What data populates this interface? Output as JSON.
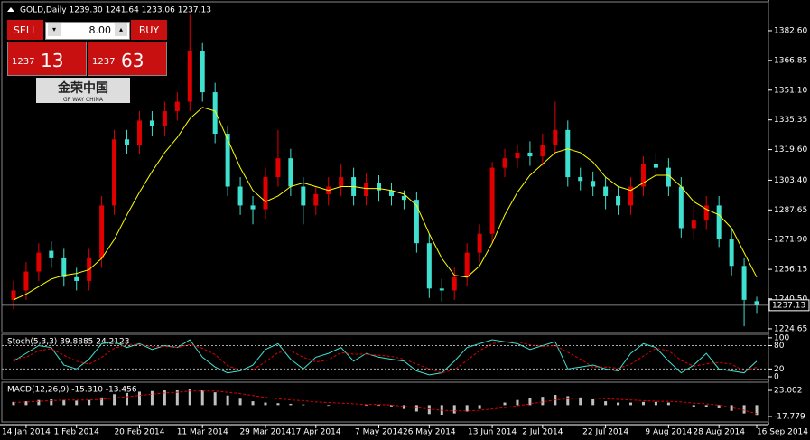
{
  "header": "GOLD,Daily 1239.30 1241.64 1233.06 1237.13",
  "trade_panel": {
    "sell": "SELL",
    "lots": "8.00",
    "buy": "BUY",
    "bid_big": "1237",
    "bid_small": "13",
    "ask_big": "1237",
    "ask_small": "63"
  },
  "logo": {
    "name": "金荣中国",
    "tagline": "GP WAY CHINA"
  },
  "chart_data": [
    {
      "type": "candlestick",
      "categories": [
        null,
        "14 Jan 2014",
        null,
        null,
        null,
        "1 Feb 2014",
        null,
        null,
        null,
        null,
        "20 Feb 2014",
        null,
        null,
        null,
        null,
        "11 Mar 2014",
        null,
        null,
        null,
        null,
        "29 Mar 2014",
        null,
        null,
        null,
        "17 Apr 2014",
        null,
        null,
        null,
        null,
        "7 May 2014",
        null,
        null,
        null,
        "26 May 2014",
        null,
        null,
        null,
        null,
        "13 Jun 2014",
        null,
        null,
        null,
        "2 Jul 2014",
        null,
        null,
        null,
        null,
        "22 Jul 2014",
        null,
        null,
        null,
        null,
        "9 Aug 2014",
        null,
        null,
        null,
        "28 Aug 2014",
        null,
        null,
        "16 Sep 2014"
      ],
      "open": [
        1240,
        1245,
        1255,
        1266,
        1262,
        1252,
        1250,
        1262,
        1290,
        1325,
        1322,
        1335,
        1332,
        1340,
        1345,
        1372,
        1350,
        1328,
        1300,
        1290,
        1288,
        1305,
        1315,
        1300,
        1290,
        1296,
        1300,
        1305,
        1295,
        1302,
        1298,
        1295,
        1293,
        1270,
        1246,
        1245,
        1252,
        1265,
        1275,
        1310,
        1315,
        1318,
        1316,
        1322,
        1330,
        1305,
        1303,
        1300,
        1295,
        1290,
        1300,
        1312,
        1310,
        1300,
        1278,
        1282,
        1290,
        1272,
        1258,
        1239.3
      ],
      "high": [
        1250,
        1260,
        1270,
        1271,
        1267,
        1257,
        1267,
        1295,
        1330,
        1330,
        1340,
        1340,
        1345,
        1350,
        1391,
        1376,
        1355,
        1332,
        1305,
        1295,
        1310,
        1330,
        1320,
        1305,
        1300,
        1305,
        1312,
        1310,
        1307,
        1306,
        1302,
        1298,
        1297,
        1275,
        1251,
        1257,
        1270,
        1280,
        1313,
        1320,
        1322,
        1324,
        1328,
        1345,
        1335,
        1310,
        1308,
        1305,
        1300,
        1305,
        1316,
        1318,
        1315,
        1305,
        1290,
        1295,
        1295,
        1278,
        1262,
        1241.64
      ],
      "low": [
        1235,
        1240,
        1250,
        1257,
        1247,
        1245,
        1245,
        1257,
        1285,
        1317,
        1317,
        1327,
        1327,
        1335,
        1340,
        1345,
        1323,
        1295,
        1285,
        1280,
        1283,
        1300,
        1295,
        1280,
        1285,
        1290,
        1295,
        1290,
        1290,
        1292,
        1290,
        1288,
        1265,
        1241,
        1239,
        1240,
        1247,
        1260,
        1270,
        1305,
        1310,
        1311,
        1311,
        1317,
        1300,
        1298,
        1295,
        1288,
        1285,
        1285,
        1295,
        1305,
        1295,
        1273,
        1272,
        1277,
        1268,
        1253,
        1226,
        1233.06
      ],
      "close": [
        1245,
        1255,
        1265,
        1262,
        1252,
        1250,
        1262,
        1290,
        1325,
        1322,
        1335,
        1332,
        1340,
        1345,
        1372,
        1350,
        1328,
        1300,
        1290,
        1288,
        1305,
        1315,
        1300,
        1290,
        1296,
        1300,
        1305,
        1295,
        1302,
        1298,
        1295,
        1293,
        1270,
        1246,
        1245,
        1252,
        1265,
        1275,
        1310,
        1315,
        1318,
        1316,
        1322,
        1330,
        1305,
        1303,
        1300,
        1295,
        1290,
        1300,
        1312,
        1310,
        1300,
        1278,
        1282,
        1290,
        1272,
        1258,
        1240,
        1237.13
      ],
      "up_color": "#e00000",
      "down_color": "#3fe0d0",
      "ma": {
        "color": "#ffff00",
        "values": [
          1240,
          1243,
          1247,
          1251,
          1253,
          1254,
          1256,
          1262,
          1272,
          1285,
          1297,
          1308,
          1318,
          1326,
          1336,
          1342,
          1340,
          1325,
          1310,
          1298,
          1292,
          1295,
          1300,
          1302,
          1300,
          1298,
          1300,
          1300,
          1299,
          1299,
          1298,
          1296,
          1290,
          1275,
          1262,
          1253,
          1252,
          1258,
          1270,
          1285,
          1297,
          1306,
          1312,
          1318,
          1320,
          1318,
          1313,
          1305,
          1300,
          1298,
          1302,
          1306,
          1306,
          1300,
          1292,
          1288,
          1285,
          1278,
          1265,
          1252
        ]
      },
      "current_price": 1237.13,
      "ylim": [
        1222.7,
        1397.9
      ],
      "yticks": [
        1224.65,
        {
          "value": 1240.5,
          "label": "1240.50"
        },
        1256.15,
        {
          "value": 1271.9,
          "label": "1271.90"
        },
        1287.65,
        {
          "value": 1303.4,
          "label": "1303.40"
        },
        {
          "value": 1319.6,
          "label": "1319.60"
        },
        1335.35,
        {
          "value": 1351.1,
          "label": "1351.10"
        },
        1366.85,
        {
          "value": 1382.6,
          "label": "1382.60"
        }
      ]
    },
    {
      "type": "line",
      "title": "Stoch(5,3,3) 39.8885 24.2123",
      "series": [
        {
          "color": "#3fe0d0",
          "values": [
            40,
            60,
            80,
            75,
            30,
            20,
            45,
            85,
            90,
            75,
            85,
            70,
            80,
            75,
            95,
            50,
            25,
            10,
            15,
            30,
            70,
            85,
            45,
            20,
            50,
            60,
            75,
            40,
            60,
            50,
            45,
            40,
            15,
            5,
            10,
            40,
            75,
            85,
            95,
            90,
            85,
            70,
            80,
            90,
            20,
            25,
            30,
            20,
            15,
            60,
            85,
            75,
            40,
            10,
            30,
            60,
            20,
            15,
            10,
            39.8885
          ]
        },
        {
          "color": "#e00000",
          "dashed": true,
          "values": [
            45,
            50,
            67,
            72,
            55,
            40,
            32,
            50,
            73,
            83,
            83,
            77,
            78,
            75,
            83,
            73,
            57,
            28,
            17,
            18,
            38,
            62,
            67,
            50,
            38,
            43,
            62,
            58,
            58,
            55,
            52,
            45,
            33,
            20,
            10,
            18,
            42,
            67,
            85,
            90,
            90,
            82,
            78,
            80,
            63,
            45,
            25,
            25,
            22,
            32,
            53,
            73,
            67,
            42,
            27,
            33,
            37,
            32,
            15,
            24.2123
          ]
        }
      ],
      "levels": [
        80,
        20
      ],
      "ylim": [
        -7,
        109
      ],
      "yticks": [
        100,
        80,
        20,
        0
      ]
    },
    {
      "type": "macd",
      "title": "MACD(12,26,9) -15.310 -13.456",
      "series": [
        {
          "color": "#c0c0c0",
          "kind": "bar",
          "values": [
            5,
            6,
            8,
            9,
            8,
            7,
            8,
            12,
            17,
            19,
            21,
            22,
            23,
            23,
            25,
            23,
            20,
            15,
            10,
            6,
            4,
            3,
            2,
            1,
            0,
            -1,
            0,
            0,
            -1,
            -1,
            -2,
            -6,
            -10,
            -14,
            -15,
            -13,
            -10,
            -6,
            0,
            4,
            8,
            11,
            13,
            16,
            14,
            12,
            9,
            6,
            4,
            4,
            5,
            5,
            4,
            0,
            -3,
            -3,
            -5,
            -9,
            -13,
            -15.31
          ]
        },
        {
          "color": "#e00000",
          "kind": "line",
          "values": [
            4,
            5,
            6,
            7,
            8,
            8,
            8,
            9,
            11,
            13,
            15,
            17,
            19,
            20,
            22,
            22,
            22,
            20,
            18,
            15,
            12,
            10,
            8,
            7,
            5,
            4,
            3,
            2,
            1,
            1,
            0,
            -2,
            -4,
            -6,
            -8,
            -9,
            -9,
            -8,
            -6,
            -4,
            -1,
            2,
            5,
            8,
            10,
            11,
            11,
            10,
            9,
            8,
            7,
            6,
            6,
            5,
            3,
            2,
            0,
            -4,
            -8,
            -13.456
          ]
        }
      ],
      "ylim": [
        -26.2,
        35.7
      ],
      "yticks": [
        23.002,
        -17.779
      ]
    }
  ]
}
